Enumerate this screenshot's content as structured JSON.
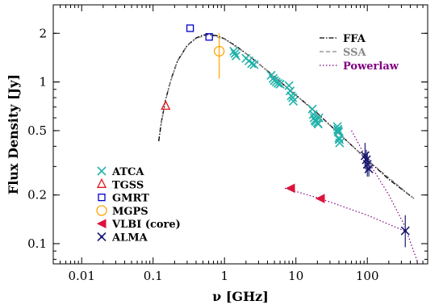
{
  "chart_data": {
    "type": "scatter",
    "xlabel": "ν [GHz]",
    "ylabel": "Flux Density [Jy]",
    "x_scale": "log",
    "y_scale": "log",
    "xlim": [
      0.004,
      700
    ],
    "ylim": [
      0.075,
      3.0
    ],
    "grid": false,
    "x_ticks": [
      {
        "value": 0.01,
        "label": "0.01"
      },
      {
        "value": 0.1,
        "label": "0.1"
      },
      {
        "value": 1,
        "label": "1"
      },
      {
        "value": 10,
        "label": "10"
      },
      {
        "value": 100,
        "label": "100"
      }
    ],
    "y_ticks": [
      {
        "value": 0.1,
        "label": "0.1"
      },
      {
        "value": 0.2,
        "label": "0.2"
      },
      {
        "value": 0.5,
        "label": "0.5"
      },
      {
        "value": 1,
        "label": "1"
      },
      {
        "value": 2,
        "label": "2"
      }
    ],
    "model_legend_position": "top-right",
    "series_legend_position": "bottom-left",
    "models": [
      {
        "name": "FFA",
        "style": "dash-dot",
        "color": "#000000",
        "points": [
          [
            0.12,
            0.43
          ],
          [
            0.13,
            0.56
          ],
          [
            0.15,
            0.78
          ],
          [
            0.18,
            1.05
          ],
          [
            0.22,
            1.35
          ],
          [
            0.3,
            1.68
          ],
          [
            0.4,
            1.87
          ],
          [
            0.5,
            1.95
          ],
          [
            0.6,
            1.97
          ],
          [
            0.8,
            1.93
          ],
          [
            1.0,
            1.85
          ],
          [
            1.5,
            1.65
          ],
          [
            2,
            1.5
          ],
          [
            3,
            1.3
          ],
          [
            5,
            1.08
          ],
          [
            8,
            0.9
          ],
          [
            10,
            0.83
          ],
          [
            20,
            0.64
          ],
          [
            40,
            0.48
          ],
          [
            100,
            0.33
          ],
          [
            200,
            0.25
          ],
          [
            450,
            0.19
          ]
        ]
      },
      {
        "name": "SSA",
        "style": "dashed",
        "color": "#888888",
        "points": [
          [
            0.13,
            0.55
          ],
          [
            0.15,
            0.77
          ],
          [
            0.18,
            1.04
          ],
          [
            0.22,
            1.34
          ],
          [
            0.3,
            1.67
          ],
          [
            0.4,
            1.86
          ],
          [
            0.6,
            1.96
          ],
          [
            1.0,
            1.84
          ],
          [
            2,
            1.5
          ],
          [
            5,
            1.08
          ],
          [
            10,
            0.83
          ],
          [
            40,
            0.48
          ],
          [
            100,
            0.33
          ],
          [
            450,
            0.19
          ]
        ]
      },
      {
        "name": "Powerlaw",
        "style": "dotted",
        "color": "#800080",
        "segments": [
          [
            [
              60,
              0.5
            ],
            [
              100,
              0.33
            ],
            [
              200,
              0.2
            ],
            [
              330,
              0.13
            ],
            [
              500,
              0.078
            ]
          ],
          [
            [
              7,
              0.22
            ],
            [
              22,
              0.19
            ],
            [
              100,
              0.15
            ],
            [
              330,
              0.12
            ]
          ]
        ]
      }
    ],
    "series": [
      {
        "name": "ATCA",
        "marker": "x",
        "color": "#20b2aa",
        "points": [
          [
            1.35,
            1.55
          ],
          [
            1.4,
            1.5
          ],
          [
            1.45,
            1.45
          ],
          [
            2.0,
            1.4
          ],
          [
            2.2,
            1.35
          ],
          [
            2.4,
            1.3
          ],
          [
            2.6,
            1.28
          ],
          [
            4.5,
            1.1
          ],
          [
            4.8,
            1.05
          ],
          [
            5.0,
            1.02
          ],
          [
            5.3,
            1.0
          ],
          [
            5.6,
            0.98
          ],
          [
            6.0,
            0.97
          ],
          [
            8.0,
            0.95
          ],
          [
            8.3,
            0.88
          ],
          [
            8.6,
            0.82
          ],
          [
            9.0,
            0.8
          ],
          [
            9.2,
            0.76
          ],
          [
            17,
            0.68
          ],
          [
            17.5,
            0.63
          ],
          [
            18,
            0.6
          ],
          [
            18.5,
            0.58
          ],
          [
            19,
            0.57
          ],
          [
            20,
            0.56
          ],
          [
            20.5,
            0.55
          ],
          [
            21,
            0.6
          ],
          [
            38,
            0.53
          ],
          [
            38.5,
            0.51
          ],
          [
            39,
            0.5
          ],
          [
            39.5,
            0.49
          ],
          [
            40,
            0.45
          ],
          [
            40.5,
            0.44
          ],
          [
            41,
            0.42
          ]
        ]
      },
      {
        "name": "TGSS",
        "marker": "triangle-up-open",
        "color": "#e41a1c",
        "points": [
          [
            0.15,
            0.71
          ]
        ]
      },
      {
        "name": "GMRT",
        "marker": "square-open",
        "color": "#0000cd",
        "points": [
          [
            0.33,
            2.15
          ],
          [
            0.61,
            1.9
          ]
        ]
      },
      {
        "name": "MGPS",
        "marker": "circle-open",
        "color": "#ffa500",
        "points": [
          [
            0.843,
            1.55
          ]
        ],
        "errors": [
          [
            1.05,
            2.0
          ]
        ]
      },
      {
        "name": "VLBI (core)",
        "marker": "triangle-left-filled",
        "color": "#dc143c",
        "points": [
          [
            8.4,
            0.22
          ],
          [
            22,
            0.19
          ]
        ]
      },
      {
        "name": "ALMA",
        "marker": "x-star",
        "color": "#191970",
        "points": [
          [
            93,
            0.35
          ],
          [
            97,
            0.33
          ],
          [
            100,
            0.31
          ],
          [
            105,
            0.29
          ],
          [
            340,
            0.12
          ]
        ],
        "errors": [
          [
            0.29,
            0.42
          ],
          [
            0.28,
            0.38
          ],
          [
            0.26,
            0.36
          ],
          [
            0.26,
            0.33
          ],
          [
            0.095,
            0.15
          ]
        ]
      }
    ]
  }
}
